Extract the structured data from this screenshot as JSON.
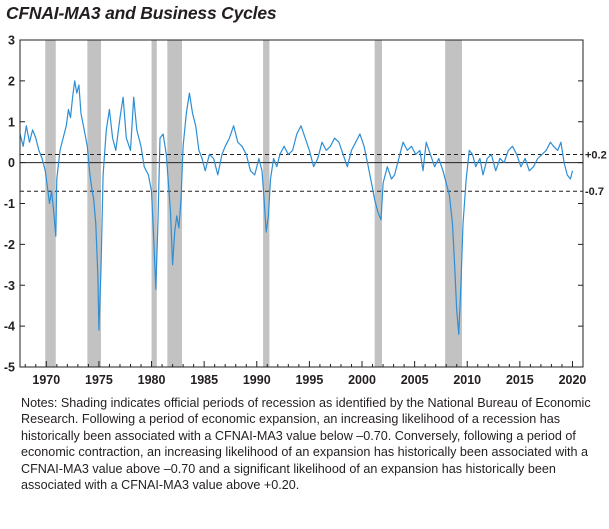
{
  "title": "CFNAI-MA3 and Business Cycles",
  "notes": "Notes: Shading indicates official periods of recession as identified by the National Bureau of Economic Research. Following a period of economic expansion, an increasing likelihood of a recession has historically been associated with a CFNAI-MA3 value below –0.70. Conversely, following a period of economic contraction, an increasing likelihood of an expansion has historically been associated with a CFNAI-MA3 value above –0.70 and a significant likelihood of an expansion has historically been associated with a CFNAI-MA3 value above +0.20.",
  "colors": {
    "series": "#2c8fd6",
    "recession": "#c2c2c2",
    "axis": "#231f20"
  },
  "chart_data": {
    "type": "line",
    "title": "CFNAI-MA3 and Business Cycles",
    "xlim": [
      1967.5,
      2021
    ],
    "ylim": [
      -5,
      3
    ],
    "x_ticks": [
      1970,
      1975,
      1980,
      1985,
      1990,
      1995,
      2000,
      2005,
      2010,
      2015,
      2020
    ],
    "x_tick_labels": [
      "1970",
      "1975",
      "1980",
      "1985",
      "1990",
      "1995",
      "2000",
      "2005",
      "2010",
      "2015",
      "2020"
    ],
    "y_ticks": [
      -5,
      -4,
      -3,
      -2,
      -1,
      0,
      1,
      2,
      3
    ],
    "y_tick_labels": [
      "-5",
      "-4",
      "-3",
      "-2",
      "-1",
      "0",
      "1",
      "2",
      "3"
    ],
    "reference_lines": [
      {
        "value": 0.2,
        "label": "+0.2",
        "style": "dashed"
      },
      {
        "value": 0,
        "label": "",
        "style": "solid"
      },
      {
        "value": -0.7,
        "label": "-0.7",
        "style": "dashed"
      }
    ],
    "recessions": [
      [
        1969.9,
        1970.9
      ],
      [
        1973.9,
        1975.2
      ],
      [
        1980.0,
        1980.5
      ],
      [
        1981.5,
        1982.9
      ],
      [
        1990.6,
        1991.2
      ],
      [
        2001.2,
        2001.9
      ],
      [
        2007.9,
        2009.5
      ]
    ],
    "series": [
      {
        "values": [
          [
            1967.5,
            0.7
          ],
          [
            1967.8,
            0.4
          ],
          [
            1968.1,
            0.9
          ],
          [
            1968.4,
            0.5
          ],
          [
            1968.7,
            0.8
          ],
          [
            1969.0,
            0.6
          ],
          [
            1969.3,
            0.3
          ],
          [
            1969.6,
            0.1
          ],
          [
            1969.9,
            -0.2
          ],
          [
            1970.1,
            -0.6
          ],
          [
            1970.3,
            -1.0
          ],
          [
            1970.5,
            -0.7
          ],
          [
            1970.7,
            -1.2
          ],
          [
            1970.9,
            -1.8
          ],
          [
            1971.0,
            -0.4
          ],
          [
            1971.3,
            0.3
          ],
          [
            1971.6,
            0.6
          ],
          [
            1971.9,
            0.9
          ],
          [
            1972.1,
            1.3
          ],
          [
            1972.3,
            1.1
          ],
          [
            1972.5,
            1.6
          ],
          [
            1972.7,
            2.0
          ],
          [
            1972.9,
            1.7
          ],
          [
            1973.1,
            1.9
          ],
          [
            1973.3,
            1.2
          ],
          [
            1973.6,
            0.8
          ],
          [
            1973.9,
            0.4
          ],
          [
            1974.1,
            -0.2
          ],
          [
            1974.3,
            -0.6
          ],
          [
            1974.5,
            -0.9
          ],
          [
            1974.7,
            -1.5
          ],
          [
            1974.9,
            -2.8
          ],
          [
            1975.0,
            -4.1
          ],
          [
            1975.2,
            -2.6
          ],
          [
            1975.4,
            -0.3
          ],
          [
            1975.7,
            0.8
          ],
          [
            1976.0,
            1.3
          ],
          [
            1976.3,
            0.6
          ],
          [
            1976.6,
            0.3
          ],
          [
            1977.0,
            1.1
          ],
          [
            1977.3,
            1.6
          ],
          [
            1977.6,
            0.6
          ],
          [
            1978.0,
            0.3
          ],
          [
            1978.3,
            1.6
          ],
          [
            1978.6,
            0.8
          ],
          [
            1979.0,
            0.4
          ],
          [
            1979.3,
            -0.1
          ],
          [
            1979.7,
            -0.3
          ],
          [
            1980.0,
            -0.7
          ],
          [
            1980.2,
            -1.8
          ],
          [
            1980.4,
            -3.1
          ],
          [
            1980.6,
            -1.5
          ],
          [
            1980.8,
            0.6
          ],
          [
            1981.1,
            0.7
          ],
          [
            1981.4,
            0.2
          ],
          [
            1981.6,
            -0.5
          ],
          [
            1981.8,
            -1.2
          ],
          [
            1982.0,
            -2.5
          ],
          [
            1982.2,
            -1.7
          ],
          [
            1982.4,
            -1.3
          ],
          [
            1982.6,
            -1.6
          ],
          [
            1982.8,
            -0.9
          ],
          [
            1983.0,
            0.4
          ],
          [
            1983.3,
            1.2
          ],
          [
            1983.6,
            1.7
          ],
          [
            1983.9,
            1.2
          ],
          [
            1984.2,
            0.9
          ],
          [
            1984.5,
            0.3
          ],
          [
            1984.8,
            0.1
          ],
          [
            1985.1,
            -0.2
          ],
          [
            1985.5,
            0.2
          ],
          [
            1985.9,
            0.1
          ],
          [
            1986.3,
            -0.3
          ],
          [
            1986.7,
            0.2
          ],
          [
            1987.0,
            0.4
          ],
          [
            1987.4,
            0.6
          ],
          [
            1987.8,
            0.9
          ],
          [
            1988.2,
            0.5
          ],
          [
            1988.6,
            0.4
          ],
          [
            1989.0,
            0.2
          ],
          [
            1989.4,
            -0.2
          ],
          [
            1989.8,
            -0.3
          ],
          [
            1990.2,
            0.1
          ],
          [
            1990.5,
            -0.2
          ],
          [
            1990.7,
            -0.9
          ],
          [
            1990.9,
            -1.7
          ],
          [
            1991.1,
            -1.3
          ],
          [
            1991.3,
            -0.4
          ],
          [
            1991.6,
            0.1
          ],
          [
            1991.9,
            -0.1
          ],
          [
            1992.2,
            0.2
          ],
          [
            1992.6,
            0.4
          ],
          [
            1993.0,
            0.2
          ],
          [
            1993.4,
            0.3
          ],
          [
            1993.8,
            0.7
          ],
          [
            1994.2,
            0.9
          ],
          [
            1994.6,
            0.6
          ],
          [
            1995.0,
            0.3
          ],
          [
            1995.4,
            -0.1
          ],
          [
            1995.8,
            0.1
          ],
          [
            1996.2,
            0.5
          ],
          [
            1996.6,
            0.3
          ],
          [
            1997.0,
            0.4
          ],
          [
            1997.4,
            0.6
          ],
          [
            1997.8,
            0.5
          ],
          [
            1998.2,
            0.2
          ],
          [
            1998.6,
            -0.1
          ],
          [
            1999.0,
            0.3
          ],
          [
            1999.4,
            0.5
          ],
          [
            1999.8,
            0.7
          ],
          [
            2000.2,
            0.4
          ],
          [
            2000.6,
            -0.1
          ],
          [
            2000.9,
            -0.5
          ],
          [
            2001.2,
            -0.9
          ],
          [
            2001.5,
            -1.2
          ],
          [
            2001.8,
            -1.4
          ],
          [
            2002.0,
            -0.5
          ],
          [
            2002.4,
            -0.1
          ],
          [
            2002.8,
            -0.4
          ],
          [
            2003.1,
            -0.3
          ],
          [
            2003.5,
            0.1
          ],
          [
            2003.9,
            0.5
          ],
          [
            2004.3,
            0.3
          ],
          [
            2004.7,
            0.4
          ],
          [
            2005.1,
            0.2
          ],
          [
            2005.5,
            0.3
          ],
          [
            2005.8,
            -0.2
          ],
          [
            2006.1,
            0.5
          ],
          [
            2006.5,
            0.2
          ],
          [
            2006.9,
            -0.1
          ],
          [
            2007.3,
            0.1
          ],
          [
            2007.7,
            -0.2
          ],
          [
            2008.0,
            -0.5
          ],
          [
            2008.3,
            -0.8
          ],
          [
            2008.6,
            -1.5
          ],
          [
            2008.8,
            -2.5
          ],
          [
            2009.0,
            -3.6
          ],
          [
            2009.2,
            -4.2
          ],
          [
            2009.4,
            -3.0
          ],
          [
            2009.6,
            -1.5
          ],
          [
            2009.9,
            -0.4
          ],
          [
            2010.2,
            0.3
          ],
          [
            2010.5,
            0.2
          ],
          [
            2010.8,
            -0.1
          ],
          [
            2011.2,
            0.1
          ],
          [
            2011.5,
            -0.3
          ],
          [
            2011.9,
            0.1
          ],
          [
            2012.3,
            0.2
          ],
          [
            2012.7,
            -0.2
          ],
          [
            2013.1,
            0.1
          ],
          [
            2013.5,
            0.0
          ],
          [
            2013.9,
            0.3
          ],
          [
            2014.3,
            0.4
          ],
          [
            2014.7,
            0.2
          ],
          [
            2015.1,
            -0.1
          ],
          [
            2015.5,
            0.1
          ],
          [
            2015.9,
            -0.2
          ],
          [
            2016.3,
            -0.1
          ],
          [
            2016.7,
            0.1
          ],
          [
            2017.1,
            0.2
          ],
          [
            2017.5,
            0.3
          ],
          [
            2017.9,
            0.5
          ],
          [
            2018.2,
            0.4
          ],
          [
            2018.6,
            0.3
          ],
          [
            2018.9,
            0.5
          ],
          [
            2019.2,
            0.0
          ],
          [
            2019.5,
            -0.3
          ],
          [
            2019.8,
            -0.4
          ],
          [
            2020.0,
            -0.2
          ]
        ]
      }
    ]
  }
}
